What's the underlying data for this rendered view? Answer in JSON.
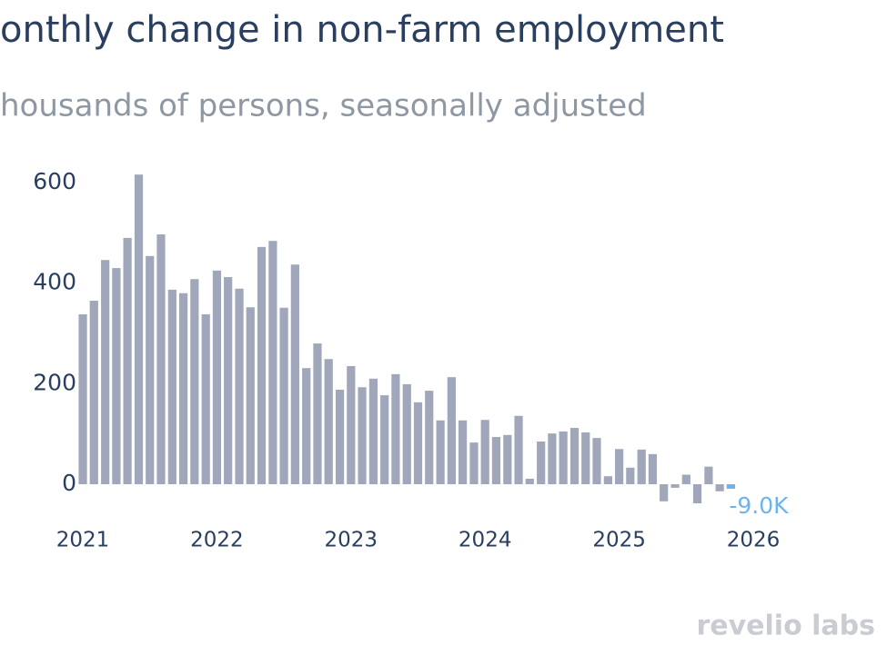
{
  "chart_data": {
    "type": "bar",
    "title": "onthly change in non-farm employment",
    "subtitle": "housands of persons, seasonally adjusted",
    "watermark": "revelio labs",
    "xlim": [
      2020.9,
      2026.3
    ],
    "xticks": [
      2021,
      2022,
      2023,
      2024,
      2025,
      2026
    ],
    "ylim": [
      -80,
      660
    ],
    "yticks": [
      0,
      200,
      400,
      600
    ],
    "grid": false,
    "highlight_color": "#6cb4ee",
    "x": [
      2021,
      2021.083,
      2021.167,
      2021.25,
      2021.333,
      2021.417,
      2021.5,
      2021.583,
      2021.667,
      2021.75,
      2021.833,
      2021.917,
      2022,
      2022.083,
      2022.167,
      2022.25,
      2022.333,
      2022.417,
      2022.5,
      2022.583,
      2022.667,
      2022.75,
      2022.833,
      2022.917,
      2023,
      2023.083,
      2023.167,
      2023.25,
      2023.333,
      2023.417,
      2023.5,
      2023.583,
      2023.667,
      2023.75,
      2023.833,
      2023.917,
      2024,
      2024.083,
      2024.167,
      2024.25,
      2024.333,
      2024.417,
      2024.5,
      2024.583,
      2024.667,
      2024.75,
      2024.833,
      2024.917,
      2025,
      2025.083,
      2025.167,
      2025.25,
      2025.333,
      2025.417,
      2025.5,
      2025.583,
      2025.667,
      2025.75,
      2025.833
    ],
    "series": [
      {
        "color": "#a0a7ba",
        "values": [
          338,
          365,
          446,
          430,
          490,
          616,
          454,
          497,
          387,
          380,
          408,
          338,
          425,
          412,
          389,
          352,
          472,
          484,
          351,
          437,
          231,
          280,
          249,
          188,
          235,
          193,
          210,
          177,
          219,
          199,
          163,
          186,
          127,
          213,
          127,
          83,
          128,
          94,
          98,
          136,
          11,
          85,
          101,
          105,
          112,
          103,
          92,
          16,
          70,
          33,
          69,
          60,
          -34,
          -7,
          19,
          -38,
          35,
          -14,
          -9
        ],
        "value_labels": [
          null,
          null,
          null,
          null,
          null,
          null,
          null,
          null,
          null,
          null,
          null,
          null,
          null,
          null,
          null,
          null,
          null,
          null,
          null,
          null,
          null,
          null,
          null,
          null,
          null,
          null,
          null,
          null,
          null,
          null,
          null,
          null,
          null,
          null,
          null,
          null,
          null,
          null,
          null,
          null,
          null,
          null,
          null,
          null,
          null,
          null,
          null,
          null,
          null,
          null,
          null,
          null,
          null,
          null,
          null,
          null,
          null,
          null,
          "-9.0K"
        ]
      }
    ]
  }
}
